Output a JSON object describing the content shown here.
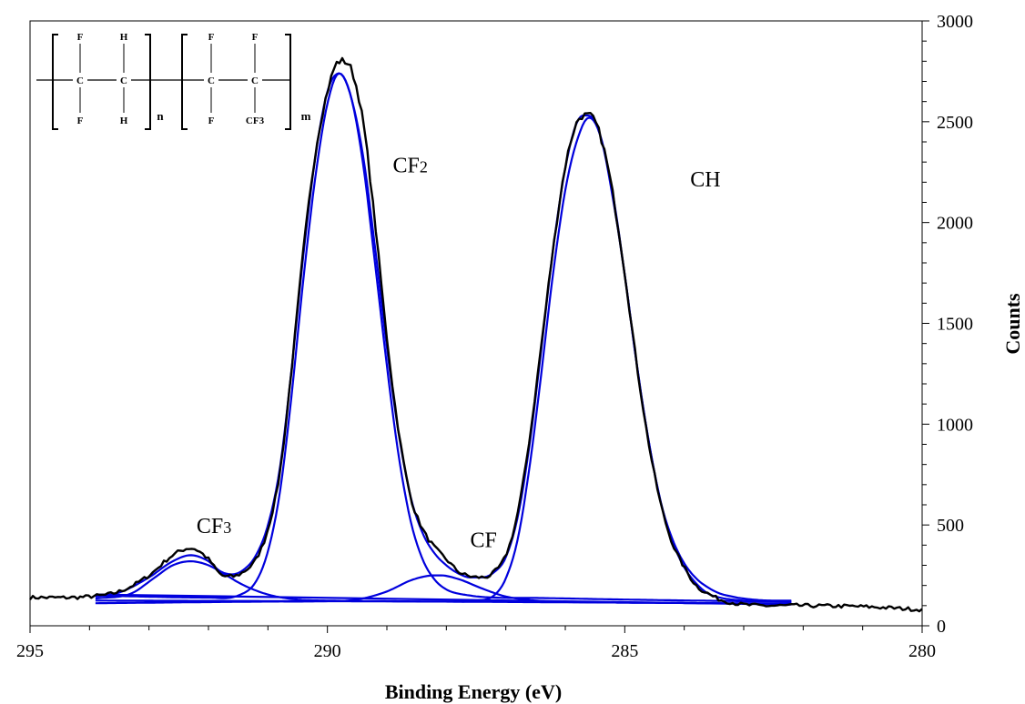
{
  "chart_data": {
    "type": "line",
    "xlabel": "Binding Energy (eV)",
    "ylabel": "Counts",
    "xlim": [
      295,
      280
    ],
    "ylim": [
      0,
      3000
    ],
    "x_reversed": true,
    "x_ticks": [
      295,
      290,
      285,
      280
    ],
    "y_ticks": [
      0,
      500,
      1000,
      1500,
      2000,
      2500,
      3000
    ],
    "y_axis_side": "right",
    "grid": false,
    "legend": "none",
    "series": [
      {
        "role": "measured",
        "color": "#000000",
        "noise_seed": 7,
        "noise_amp": 9,
        "x": [
          295.0,
          294.0,
          293.5,
          293.0,
          292.6,
          292.3,
          292.0,
          291.8,
          291.6,
          291.4,
          291.2,
          291.0,
          290.8,
          290.6,
          290.4,
          290.2,
          290.0,
          289.8,
          289.6,
          289.4,
          289.2,
          289.0,
          288.8,
          288.6,
          288.4,
          288.2,
          288.0,
          287.8,
          287.6,
          287.4,
          287.2,
          287.0,
          286.8,
          286.6,
          286.4,
          286.2,
          286.0,
          285.8,
          285.6,
          285.4,
          285.2,
          285.0,
          284.8,
          284.6,
          284.4,
          284.2,
          284.0,
          283.8,
          283.6,
          283.4,
          283.2,
          283.0,
          282.0,
          281.0,
          280.0
        ],
        "y": [
          140,
          145,
          170,
          250,
          350,
          385,
          330,
          255,
          245,
          270,
          330,
          480,
          760,
          1280,
          1870,
          2350,
          2650,
          2800,
          2760,
          2500,
          2000,
          1430,
          960,
          640,
          480,
          390,
          330,
          270,
          245,
          240,
          265,
          350,
          560,
          930,
          1400,
          1880,
          2280,
          2500,
          2530,
          2420,
          2140,
          1750,
          1300,
          910,
          610,
          410,
          290,
          200,
          160,
          130,
          115,
          105,
          100,
          95,
          80
        ]
      },
      {
        "role": "fit-envelope",
        "color": "#0000dd",
        "x": [
          293.9,
          293.5,
          293.0,
          292.6,
          292.3,
          292.0,
          291.8,
          291.6,
          291.4,
          291.2,
          291.0,
          290.8,
          290.6,
          290.4,
          290.2,
          290.0,
          289.8,
          289.6,
          289.4,
          289.2,
          289.0,
          288.8,
          288.6,
          288.4,
          288.2,
          288.0,
          287.8,
          287.6,
          287.4,
          287.2,
          287.0,
          286.8,
          286.6,
          286.4,
          286.2,
          286.0,
          285.8,
          285.6,
          285.4,
          285.2,
          285.0,
          284.8,
          284.6,
          284.4,
          284.2,
          284.0,
          283.8,
          283.6,
          283.4,
          283.2,
          283.0,
          282.5,
          282.2
        ],
        "y": [
          145,
          165,
          240,
          320,
          350,
          320,
          270,
          255,
          280,
          350,
          500,
          780,
          1280,
          1850,
          2330,
          2650,
          2740,
          2620,
          2330,
          1880,
          1380,
          950,
          640,
          460,
          360,
          300,
          260,
          240,
          240,
          265,
          340,
          540,
          900,
          1380,
          1880,
          2270,
          2500,
          2530,
          2420,
          2140,
          1740,
          1300,
          920,
          620,
          430,
          310,
          235,
          190,
          160,
          145,
          135,
          125,
          125
        ]
      },
      {
        "role": "component",
        "name": "CF3",
        "color": "#0000dd",
        "x": [
          293.9,
          293.3,
          292.9,
          292.6,
          292.3,
          292.0,
          291.7,
          291.4,
          291.0,
          290.5,
          290.0,
          289.0,
          287.0,
          285.0,
          284.5,
          284.0,
          283.5,
          283.0,
          282.5,
          282.2
        ],
        "y": [
          135,
          160,
          240,
          300,
          320,
          300,
          250,
          200,
          155,
          130,
          125,
          122,
          118,
          115,
          114,
          113,
          112,
          111,
          110,
          110
        ]
      },
      {
        "role": "component",
        "name": "CF",
        "color": "#0000dd",
        "x": [
          293.9,
          291.0,
          290.0,
          289.5,
          289.0,
          288.6,
          288.3,
          288.1,
          287.8,
          287.4,
          287.0,
          286.5,
          286.0,
          285.0,
          284.0,
          283.0,
          282.2
        ],
        "y": [
          112,
          120,
          122,
          130,
          170,
          225,
          248,
          250,
          232,
          185,
          145,
          125,
          118,
          115,
          113,
          111,
          110
        ]
      },
      {
        "role": "component",
        "name": "CF2",
        "color": "#0000dd",
        "x": [
          293.9,
          292.0,
          291.5,
          291.2,
          291.0,
          290.8,
          290.6,
          290.4,
          290.2,
          290.0,
          289.8,
          289.6,
          289.4,
          289.2,
          289.0,
          288.8,
          288.6,
          288.4,
          288.2,
          288.0,
          287.6,
          287.2,
          286.5,
          285.0,
          283.0,
          282.2
        ],
        "y": [
          150,
          140,
          150,
          220,
          370,
          660,
          1150,
          1730,
          2230,
          2590,
          2740,
          2620,
          2290,
          1800,
          1290,
          840,
          520,
          330,
          230,
          180,
          150,
          140,
          138,
          130,
          122,
          120
        ]
      },
      {
        "role": "component",
        "name": "CH",
        "color": "#0000dd",
        "x": [
          293.9,
          290.0,
          288.0,
          287.5,
          287.2,
          287.0,
          286.8,
          286.6,
          286.4,
          286.2,
          286.0,
          285.8,
          285.6,
          285.4,
          285.2,
          285.0,
          284.8,
          284.6,
          284.4,
          284.2,
          284.0,
          283.8,
          283.6,
          283.4,
          283.0,
          282.2
        ],
        "y": [
          125,
          122,
          120,
          125,
          150,
          235,
          430,
          790,
          1260,
          1760,
          2160,
          2410,
          2520,
          2420,
          2120,
          1740,
          1300,
          920,
          620,
          420,
          290,
          210,
          160,
          140,
          125,
          120
        ]
      },
      {
        "role": "baseline",
        "color": "#0000dd",
        "x": [
          293.9,
          282.2
        ],
        "y": [
          155,
          105
        ]
      }
    ],
    "annotations": [
      {
        "text": "CF",
        "sub": "2",
        "x": 288.9,
        "y": 2250
      },
      {
        "text": "CH",
        "sub": "",
        "x": 283.9,
        "y": 2180
      },
      {
        "text": "CF",
        "sub": "3",
        "x": 292.2,
        "y": 460
      },
      {
        "text": "CF",
        "sub": "",
        "x": 287.6,
        "y": 390
      }
    ],
    "inset_structure": {
      "unit1_top": [
        "F",
        "H"
      ],
      "unit1_mid": [
        "C",
        "C"
      ],
      "unit1_bot": [
        "F",
        "H"
      ],
      "unit1_subscript": "n",
      "unit2_top": [
        "F",
        "F"
      ],
      "unit2_mid": [
        "C",
        "C"
      ],
      "unit2_bot": [
        "F",
        "CF3"
      ],
      "unit2_subscript": "m"
    }
  }
}
